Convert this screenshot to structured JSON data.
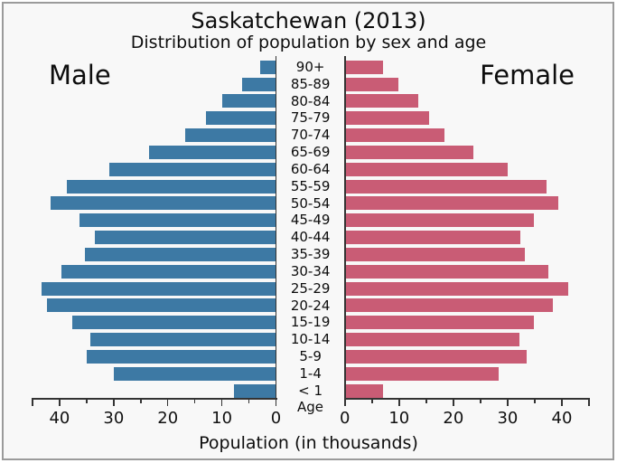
{
  "header": {
    "title": "Saskatchewan (2013)",
    "subtitle": "Distribution of population by sex and age"
  },
  "colors": {
    "male_bar": "#3d79a4",
    "female_bar": "#c95c75",
    "background": "#f8f8f8",
    "frame_border": "#9b9b9b",
    "axis": "#333333",
    "text": "#0d0d0d"
  },
  "chart_data": {
    "type": "bar",
    "variant": "population-pyramid",
    "title": "Saskatchewan (2013)",
    "subtitle": "Distribution of population by sex and age",
    "xlabel": "Population (in thousands)",
    "center_axis_label": "Age",
    "categories": [
      "90+",
      "85-89",
      "80-84",
      "75-79",
      "70-74",
      "65-69",
      "60-64",
      "55-59",
      "50-54",
      "45-49",
      "40-44",
      "35-39",
      "30-34",
      "25-29",
      "20-24",
      "15-19",
      "10-14",
      "5-9",
      "1-4",
      "< 1"
    ],
    "series": [
      {
        "name": "Male",
        "side": "left",
        "color": "#3d79a4",
        "values": [
          2.9,
          6.2,
          10.0,
          13.0,
          16.7,
          23.4,
          30.8,
          38.7,
          41.7,
          36.4,
          33.5,
          35.3,
          39.6,
          43.3,
          42.4,
          37.6,
          34.3,
          35.0,
          29.9,
          7.7
        ]
      },
      {
        "name": "Female",
        "side": "right",
        "color": "#c95c75",
        "values": [
          7.1,
          9.8,
          13.5,
          15.5,
          18.3,
          23.7,
          30.0,
          37.1,
          39.3,
          34.9,
          32.3,
          33.2,
          37.5,
          41.1,
          38.4,
          34.8,
          32.2,
          33.5,
          28.4,
          7.1
        ]
      }
    ],
    "xlim": [
      0,
      45
    ],
    "xticks_major": [
      0,
      10,
      20,
      30,
      40
    ],
    "xticks_minor": [
      5,
      15,
      25,
      35,
      45
    ],
    "grid": false,
    "legend_position": "none"
  }
}
